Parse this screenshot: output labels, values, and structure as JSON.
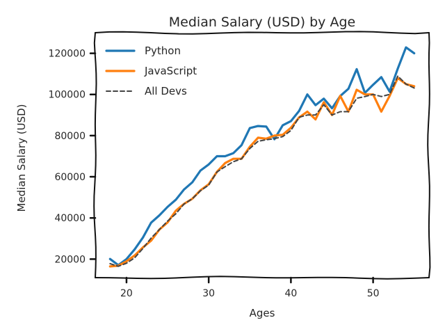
{
  "chart_data": {
    "type": "line",
    "title": "Median Salary (USD) by Age",
    "xlabel": "Ages",
    "ylabel": "Median Salary (USD)",
    "xlim": [
      16.2,
      56.8
    ],
    "ylim": [
      11000,
      130000
    ],
    "xticks": [
      20,
      30,
      40,
      50
    ],
    "yticks": [
      20000,
      40000,
      60000,
      80000,
      100000,
      120000
    ],
    "grid": false,
    "legend_position": "top-left",
    "x": [
      18,
      19,
      20,
      21,
      22,
      23,
      24,
      25,
      26,
      27,
      28,
      29,
      30,
      31,
      32,
      33,
      34,
      35,
      36,
      37,
      38,
      39,
      40,
      41,
      42,
      43,
      44,
      45,
      46,
      47,
      48,
      49,
      50,
      51,
      52,
      53,
      54,
      55
    ],
    "series": [
      {
        "name": "Python",
        "color": "#1f77b4",
        "style": "solid",
        "values": [
          20046,
          17100,
          20000,
          24744,
          30500,
          37732,
          41247,
          45372,
          48876,
          53850,
          57287,
          63016,
          65998,
          70003,
          70000,
          71496,
          75370,
          83640,
          84666,
          84392,
          78254,
          85000,
          87038,
          91991,
          100000,
          94796,
          97962,
          93302,
          99240,
          102736,
          112285,
          100771,
          104708,
          108423,
          101407,
          112542,
          122870,
          120000
        ]
      },
      {
        "name": "JavaScript",
        "color": "#ff7f0e",
        "style": "solid",
        "values": [
          16446,
          16791,
          18942,
          21780,
          25704,
          29000,
          34372,
          37810,
          43515,
          46823,
          49293,
          53437,
          56373,
          62375,
          66674,
          68745,
          68746,
          74583,
          79000,
          78508,
          79996,
          80403,
          83820,
          88833,
          91660,
          87892,
          96243,
          90000,
          99313,
          91660,
          102264,
          100000,
          100000,
          91660,
          99240,
          108000,
          105000,
          104000
        ]
      },
      {
        "name": "All Devs",
        "color": "#444444",
        "style": "dashed",
        "values": [
          17784,
          16500,
          18012,
          20628,
          25206,
          30252,
          34368,
          38496,
          42000,
          46752,
          49320,
          53200,
          56000,
          62316,
          64928,
          67317,
          68748,
          73752,
          77232,
          78000,
          78508,
          79536,
          82488,
          88935,
          90000,
          90056,
          95000,
          90000,
          91633,
          91660,
          98150,
          98964,
          100000,
          98988,
          100000,
          108923,
          105000,
          103117
        ]
      }
    ]
  }
}
